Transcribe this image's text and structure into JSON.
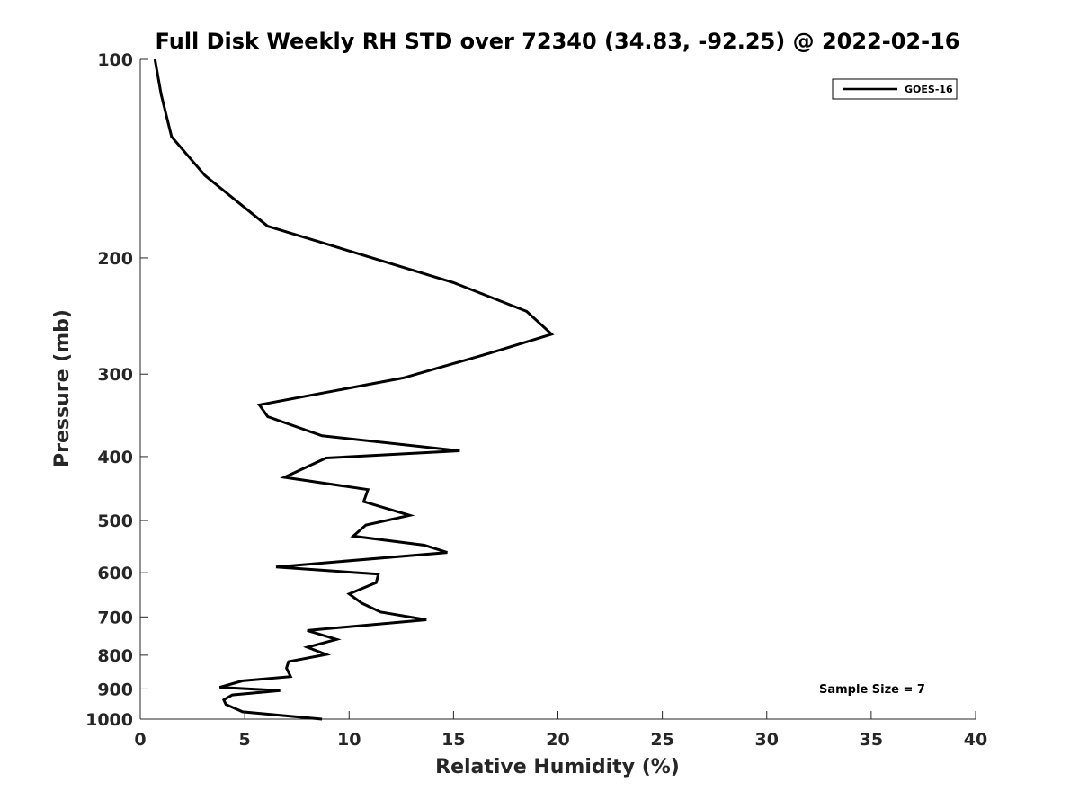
{
  "chart_data": {
    "type": "line",
    "title": "Full Disk Weekly RH STD over 72340 (34.83, -92.25) @ 2022-02-16",
    "xlabel": "Relative Humidity (%)",
    "ylabel": "Pressure (mb)",
    "xlim": [
      0,
      40
    ],
    "ylim": [
      1000,
      100
    ],
    "y_scale": "log",
    "x_ticks": [
      0,
      5,
      10,
      15,
      20,
      25,
      30,
      35,
      40
    ],
    "y_ticks": [
      100,
      200,
      300,
      400,
      500,
      600,
      700,
      800,
      900,
      1000
    ],
    "grid": false,
    "legend_position": "top-right",
    "annotation": "Sample Size = 7",
    "line_color": "#000000",
    "series": [
      {
        "name": "GOES-16",
        "x": [
          0.7,
          1.0,
          1.5,
          3.1,
          6.1,
          15.0,
          18.5,
          19.7,
          16.7,
          12.6,
          5.7,
          6.1,
          8.7,
          15.3,
          8.9,
          6.9,
          10.9,
          10.7,
          12.9,
          10.8,
          10.2,
          13.6,
          14.7,
          6.5,
          11.4,
          11.3,
          10.0,
          10.6,
          11.5,
          13.7,
          8.0,
          9.4,
          8.0,
          8.9,
          7.1,
          7.0,
          7.2,
          4.9,
          3.8,
          6.7,
          4.4,
          4.0,
          4.1,
          4.9,
          8.7
        ],
        "y": [
          100,
          113,
          131,
          150,
          179,
          218,
          241,
          261,
          279,
          304,
          334,
          348,
          372,
          392,
          402,
          430,
          449,
          468,
          491,
          508,
          528,
          545,
          559,
          588,
          603,
          621,
          646,
          667,
          688,
          707,
          734,
          757,
          778,
          798,
          818,
          837,
          862,
          875,
          895,
          905,
          919,
          935,
          950,
          975,
          1000
        ]
      }
    ]
  }
}
